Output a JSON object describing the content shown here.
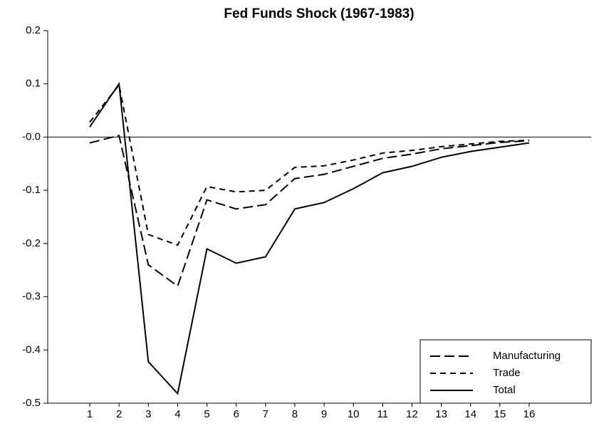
{
  "chart_data": {
    "type": "line",
    "title": "Fed Funds Shock (1967-1983)",
    "categories": [
      "1",
      "2",
      "3",
      "4",
      "5",
      "6",
      "7",
      "8",
      "9",
      "10",
      "11",
      "12",
      "13",
      "14",
      "15",
      "16"
    ],
    "series": [
      {
        "name": "Manufacturing",
        "color": "#000000",
        "values": [
          -0.011,
          0.003,
          -0.24,
          -0.28,
          -0.118,
          -0.135,
          -0.127,
          -0.078,
          -0.07,
          -0.055,
          -0.04,
          -0.032,
          -0.022,
          -0.016,
          -0.01,
          -0.007
        ]
      },
      {
        "name": "Trade",
        "color": "#000000",
        "values": [
          0.028,
          0.098,
          -0.183,
          -0.203,
          -0.093,
          -0.103,
          -0.1,
          -0.057,
          -0.054,
          -0.043,
          -0.03,
          -0.025,
          -0.018,
          -0.013,
          -0.008,
          -0.006
        ]
      },
      {
        "name": "Total",
        "color": "#000000",
        "values": [
          0.019,
          0.1,
          -0.422,
          -0.482,
          -0.21,
          -0.237,
          -0.225,
          -0.135,
          -0.123,
          -0.097,
          -0.067,
          -0.055,
          -0.038,
          -0.027,
          -0.019,
          -0.011
        ]
      }
    ],
    "ylim": [
      -0.5,
      0.2
    ],
    "yticks": [
      0.2,
      0.1,
      {
        "value": 0,
        "label": "-0.0"
      },
      -0.1,
      -0.2,
      -0.3,
      -0.4,
      -0.5
    ],
    "legend": "lower right"
  }
}
